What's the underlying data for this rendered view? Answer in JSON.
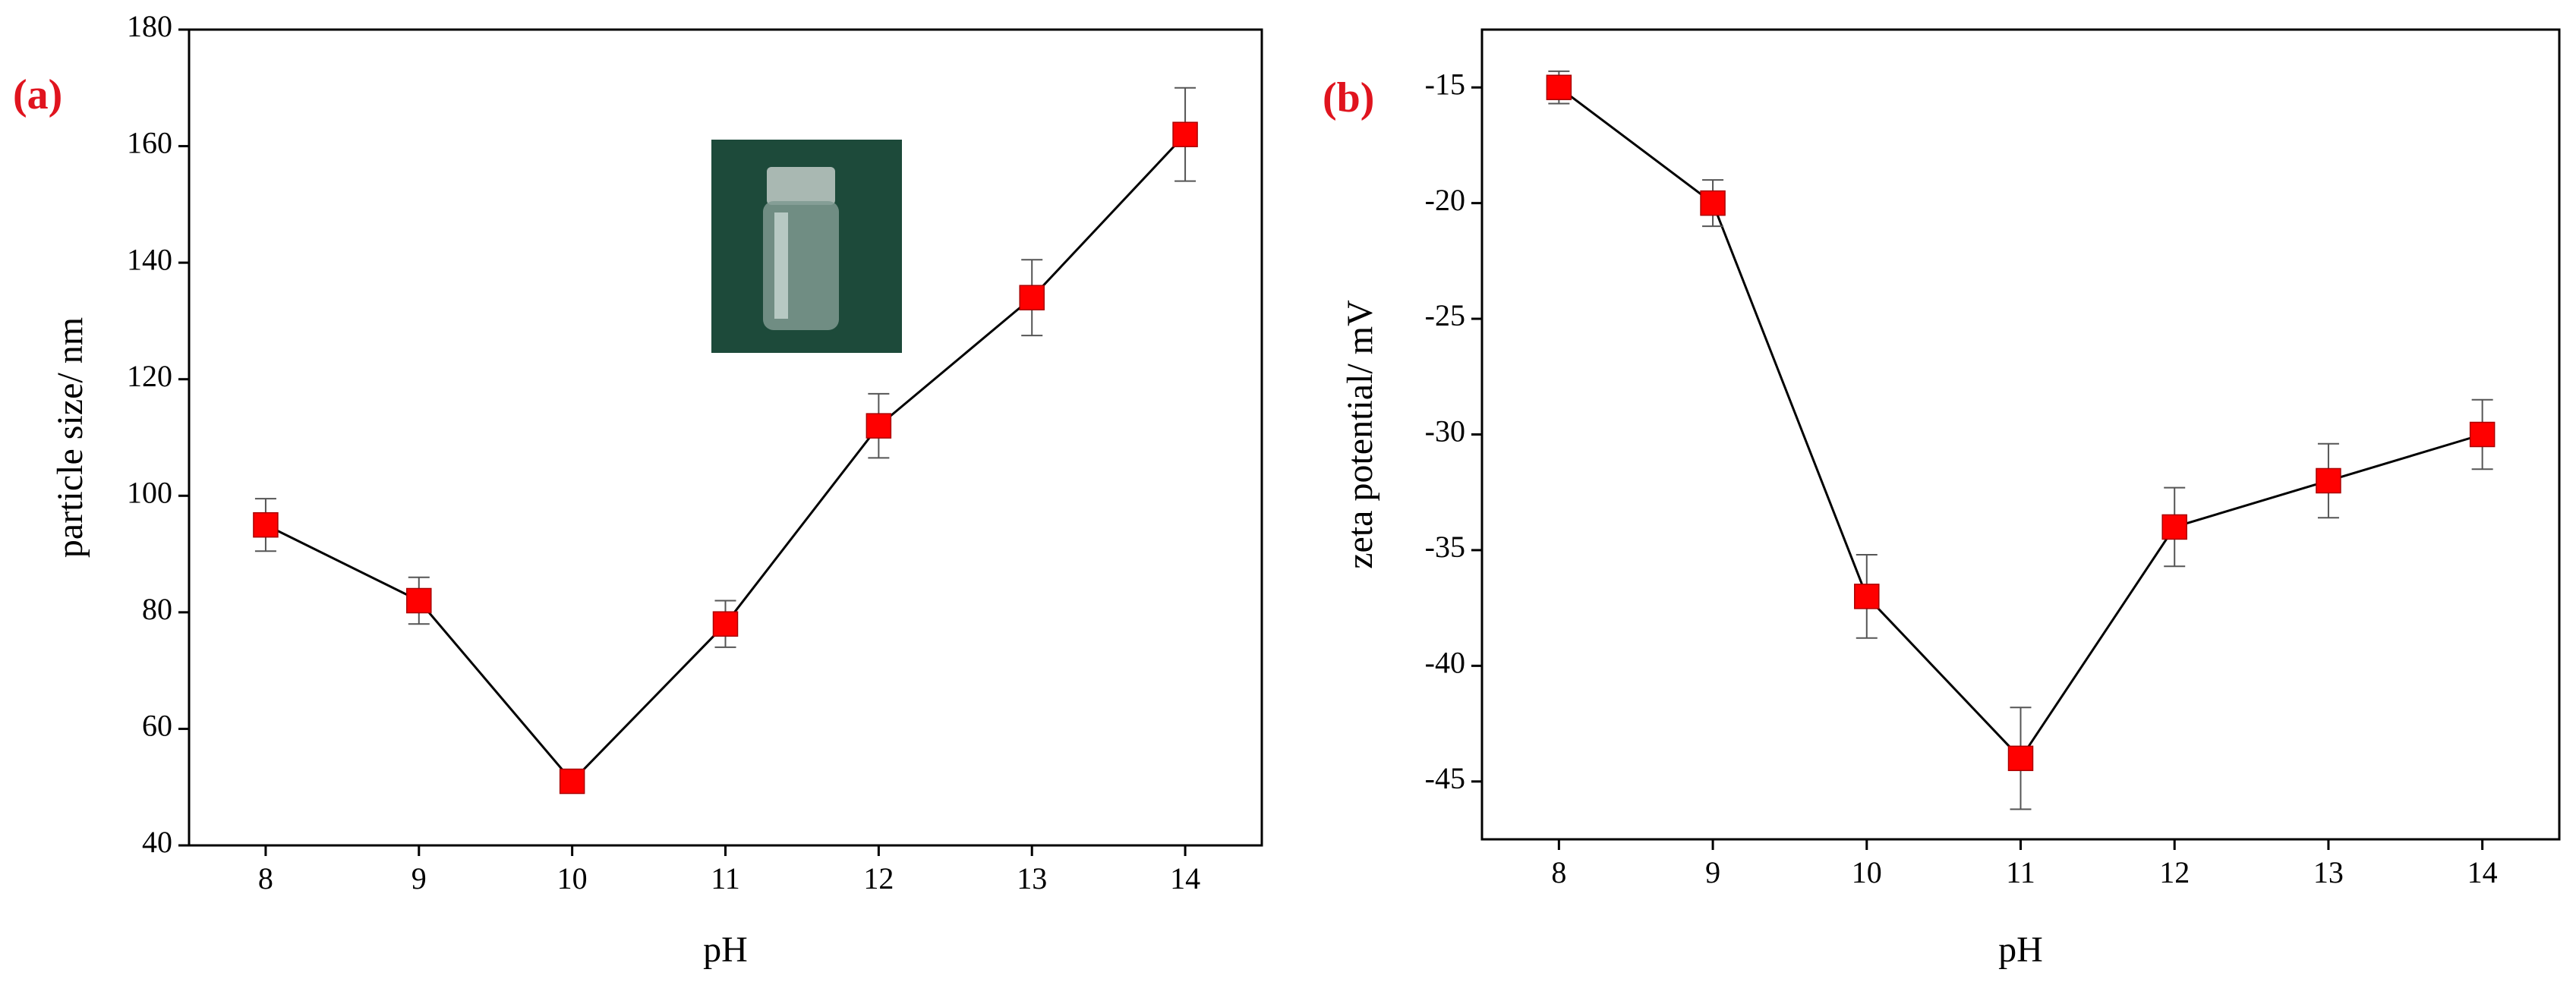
{
  "chart_data": [
    {
      "type": "line",
      "panel_label": "(a)",
      "x_label": "pH",
      "y_label": "particle size/ nm",
      "x": [
        8,
        9,
        10,
        11,
        12,
        13,
        14
      ],
      "values": [
        95,
        82,
        51,
        78,
        112,
        134,
        162
      ],
      "errors": [
        4.5,
        4,
        2,
        4,
        5.5,
        6.5,
        8
      ],
      "color": "#ff0000",
      "xlim": [
        7.5,
        14.5
      ],
      "xticks": [
        8,
        9,
        10,
        11,
        12,
        13,
        14
      ],
      "ylim": [
        40,
        180
      ],
      "yticks": [
        40,
        60,
        80,
        100,
        120,
        140,
        160,
        180
      ]
    },
    {
      "type": "line",
      "panel_label": "(b)",
      "x_label": "pH",
      "y_label": "zeta potential/ mV",
      "x": [
        8,
        9,
        10,
        11,
        12,
        13,
        14
      ],
      "values": [
        -15,
        -20,
        -37,
        -44,
        -34,
        -32,
        -30
      ],
      "errors": [
        0.7,
        1,
        1.8,
        2.2,
        1.7,
        1.6,
        1.5
      ],
      "color": "#ff0000",
      "xlim": [
        7.5,
        14.5
      ],
      "xticks": [
        8,
        9,
        10,
        11,
        12,
        13,
        14
      ],
      "ylim": [
        -47.5,
        -12.5
      ],
      "yticks": [
        -45,
        -40,
        -35,
        -30,
        -25,
        -20,
        -15
      ]
    }
  ]
}
